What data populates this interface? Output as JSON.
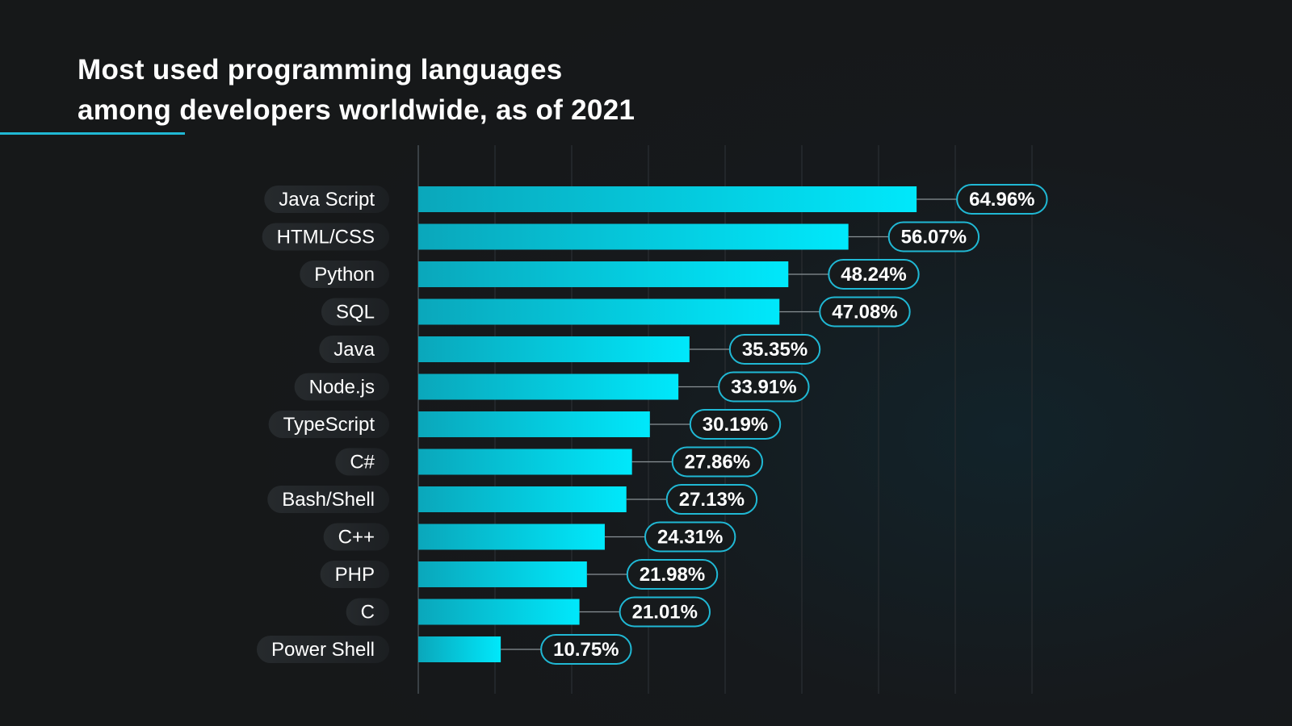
{
  "title_lines": [
    "Most used programming languages",
    "among developers worldwide, as of 2021"
  ],
  "colors": {
    "background": "#161819",
    "accent": "#20b8d4",
    "bar_start": "#0aa7bb",
    "bar_end": "#00e8fb",
    "pill_background": "#1f2427",
    "grid": "#262b2f"
  },
  "chart_data": {
    "type": "bar",
    "orientation": "horizontal",
    "title": "Most used programming languages among developers worldwide, as of 2021",
    "categories": [
      "Java Script",
      "HTML/CSS",
      "Python",
      "SQL",
      "Java",
      "Node.js",
      "TypeScript",
      "C#",
      "Bash/Shell",
      "C++",
      "PHP",
      "C",
      "Power Shell"
    ],
    "values": [
      64.96,
      56.07,
      48.24,
      47.08,
      35.35,
      33.91,
      30.19,
      27.86,
      27.13,
      24.31,
      21.98,
      21.01,
      10.75
    ],
    "value_labels": [
      "64.96%",
      "56.07%",
      "48.24%",
      "47.08%",
      "35.35%",
      "33.91%",
      "30.19%",
      "27.86%",
      "27.13%",
      "24.31%",
      "21.98%",
      "21.01%",
      "10.75%"
    ],
    "unit": "%",
    "xlim": [
      0,
      80
    ],
    "grid": true,
    "gridline_step": 10,
    "legend": "none"
  }
}
